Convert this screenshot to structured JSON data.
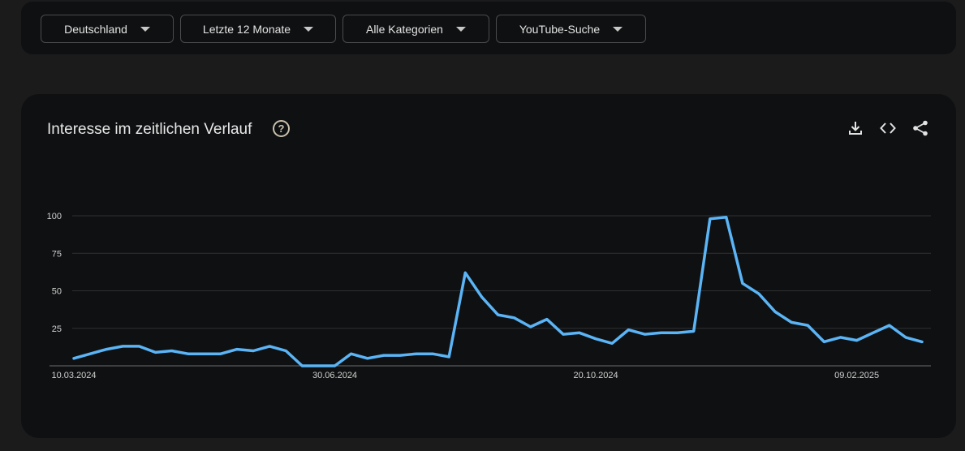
{
  "filters": [
    {
      "label": "Deutschland"
    },
    {
      "label": "Letzte 12 Monate"
    },
    {
      "label": "Alle Kategorien"
    },
    {
      "label": "YouTube-Suche"
    }
  ],
  "card": {
    "title": "Interesse im zeitlichen Verlauf",
    "help_glyph": "?"
  },
  "icons": [
    "help-icon",
    "download-icon",
    "embed-code-icon",
    "share-icon"
  ],
  "colors": {
    "line": "#5ab4f6",
    "accent_icon": "#c9c1ad"
  },
  "chart_data": {
    "type": "line",
    "title": "Interesse im zeitlichen Verlauf",
    "xlabel": "",
    "ylabel": "",
    "ylim": [
      0,
      100
    ],
    "yticks": [
      "100",
      "75",
      "50",
      "25"
    ],
    "x_tick_labels": [
      "10.03.2024",
      "30.06.2024",
      "20.10.2024",
      "09.02.2025"
    ],
    "x_tick_index": [
      0,
      16,
      32,
      48
    ],
    "grid": true,
    "series": [
      {
        "values": [
          5,
          8,
          11,
          13,
          13,
          9,
          10,
          8,
          8,
          8,
          11,
          10,
          13,
          10,
          0,
          0,
          0,
          8,
          5,
          7,
          7,
          8,
          8,
          6,
          62,
          46,
          34,
          32,
          26,
          31,
          21,
          22,
          18,
          15,
          24,
          21,
          22,
          22,
          23,
          98,
          99,
          55,
          48,
          36,
          29,
          27,
          16,
          19,
          17,
          22,
          27,
          19,
          16
        ]
      }
    ]
  }
}
